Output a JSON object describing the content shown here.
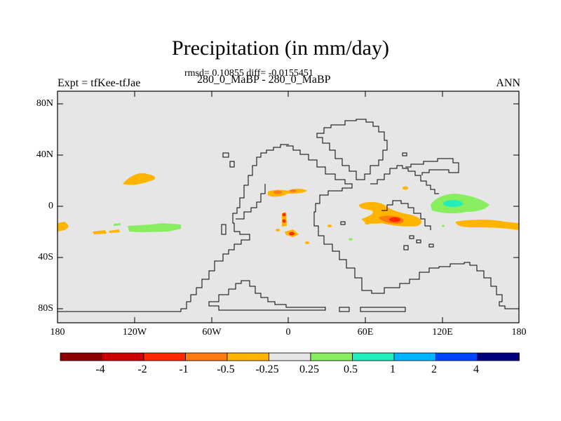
{
  "title": "Precipitation (in mm/day)",
  "stats_line": "rmsd= 0.10855 diff= -0.0155451",
  "subtitle": "280_0_MaBP - 280_0_MaBP",
  "left_label": "Expt = tfKee-tfJae",
  "right_label": "ANN",
  "y_ticks": [
    "80N",
    "40N",
    "0",
    "40S",
    "80S"
  ],
  "x_ticks": [
    "180",
    "120W",
    "60W",
    "0",
    "60E",
    "120E",
    "180"
  ],
  "colorbar": {
    "colors": [
      "#8b0000",
      "#cc0000",
      "#ff2a00",
      "#ff7a10",
      "#ffb400",
      "#e6e6e6",
      "#88ee60",
      "#22eebb",
      "#00b4ff",
      "#0044ff",
      "#00007f"
    ],
    "labels": [
      "-4",
      "-2",
      "-1",
      "-0.5",
      "-0.25",
      "0.25",
      "0.5",
      "1",
      "2",
      "4"
    ]
  },
  "map": {
    "background": "#e6e6e6"
  }
}
